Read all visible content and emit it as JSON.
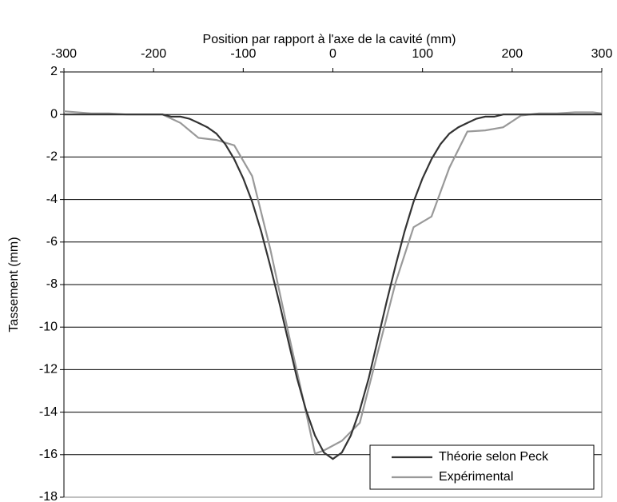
{
  "chart_data": {
    "type": "line",
    "x_label": "Position par rapport à l'axe de la cavité (mm)",
    "y_label": "Tassement (mm)",
    "xlim": [
      -300,
      300
    ],
    "xticks": [
      -300,
      -200,
      -100,
      0,
      100,
      200,
      300
    ],
    "ylim": [
      -18,
      2
    ],
    "yticks": [
      2,
      0,
      -2,
      -4,
      -6,
      -8,
      -10,
      -12,
      -14,
      -16,
      -18
    ],
    "grid": true,
    "legend": "lower right",
    "x_axis_position": "top",
    "series": [
      {
        "name": "Théorie selon Peck",
        "color": "#333333",
        "x": [
          -300,
          -250,
          -200,
          -190,
          -180,
          -170,
          -160,
          -150,
          -140,
          -130,
          -120,
          -110,
          -100,
          -90,
          -80,
          -70,
          -60,
          -50,
          -40,
          -30,
          -20,
          -10,
          0,
          10,
          20,
          30,
          40,
          50,
          60,
          70,
          80,
          90,
          100,
          110,
          120,
          130,
          140,
          150,
          160,
          170,
          180,
          190,
          200,
          250,
          300
        ],
        "values": [
          0,
          0,
          0,
          0,
          -0.1,
          -0.1,
          -0.2,
          -0.4,
          -0.6,
          -0.9,
          -1.4,
          -2.1,
          -3.0,
          -4.1,
          -5.5,
          -7.1,
          -8.8,
          -10.6,
          -12.4,
          -13.9,
          -15.1,
          -15.9,
          -16.2,
          -15.9,
          -15.1,
          -13.9,
          -12.4,
          -10.6,
          -8.8,
          -7.1,
          -5.5,
          -4.1,
          -3.0,
          -2.1,
          -1.4,
          -0.9,
          -0.6,
          -0.4,
          -0.2,
          -0.1,
          -0.1,
          0,
          0,
          0,
          0
        ]
      },
      {
        "name": "Expérimental",
        "color": "#999999",
        "x": [
          -300,
          -270,
          -250,
          -230,
          -190,
          -170,
          -150,
          -130,
          -110,
          -90,
          -70,
          -50,
          -30,
          -20,
          -10,
          10,
          30,
          50,
          70,
          90,
          110,
          130,
          150,
          170,
          190,
          210,
          230,
          250,
          270,
          290,
          300
        ],
        "values": [
          0.15,
          0.05,
          0.05,
          0,
          0,
          -0.4,
          -1.1,
          -1.2,
          -1.45,
          -2.9,
          -6.3,
          -10.2,
          -14,
          -15.95,
          -15.8,
          -15.35,
          -14.5,
          -11.2,
          -7.9,
          -5.3,
          -4.8,
          -2.5,
          -0.8,
          -0.75,
          -0.6,
          -0.05,
          0.05,
          0.05,
          0.1,
          0.1,
          0.05
        ]
      }
    ]
  }
}
